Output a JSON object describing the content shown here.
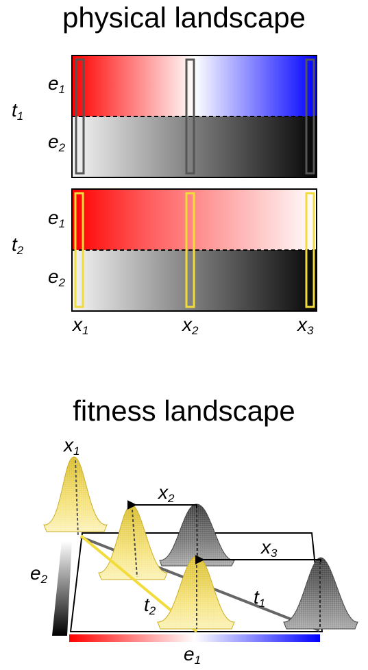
{
  "titles": {
    "physical": "physical landscape",
    "fitness": "fitness landscape"
  },
  "physical": {
    "panels": [
      {
        "time": "t",
        "time_sub": "1",
        "box_color": "#555555",
        "e1_gradient": "red-white-blue"
      },
      {
        "time": "t",
        "time_sub": "2",
        "box_color": "#f2dc3c",
        "e1_gradient": "red-white"
      }
    ],
    "env_rows": [
      {
        "base": "e",
        "sub": "1"
      },
      {
        "base": "e",
        "sub": "2"
      }
    ],
    "locations": [
      {
        "base": "x",
        "sub": "1"
      },
      {
        "base": "x",
        "sub": "2"
      },
      {
        "base": "x",
        "sub": "3"
      }
    ]
  },
  "fitness": {
    "axis_e1": {
      "base": "e",
      "sub": "1"
    },
    "axis_e2": {
      "base": "e",
      "sub": "2"
    },
    "peak_labels": [
      {
        "base": "x",
        "sub": "1"
      },
      {
        "base": "x",
        "sub": "2"
      },
      {
        "base": "x",
        "sub": "3"
      }
    ],
    "trajectories": [
      {
        "base": "t",
        "sub": "1",
        "color": "#666666"
      },
      {
        "base": "t",
        "sub": "2",
        "color": "#f2dc3c"
      }
    ],
    "colors": {
      "yellow": "#f2dc3c",
      "gray": "#666666"
    }
  }
}
